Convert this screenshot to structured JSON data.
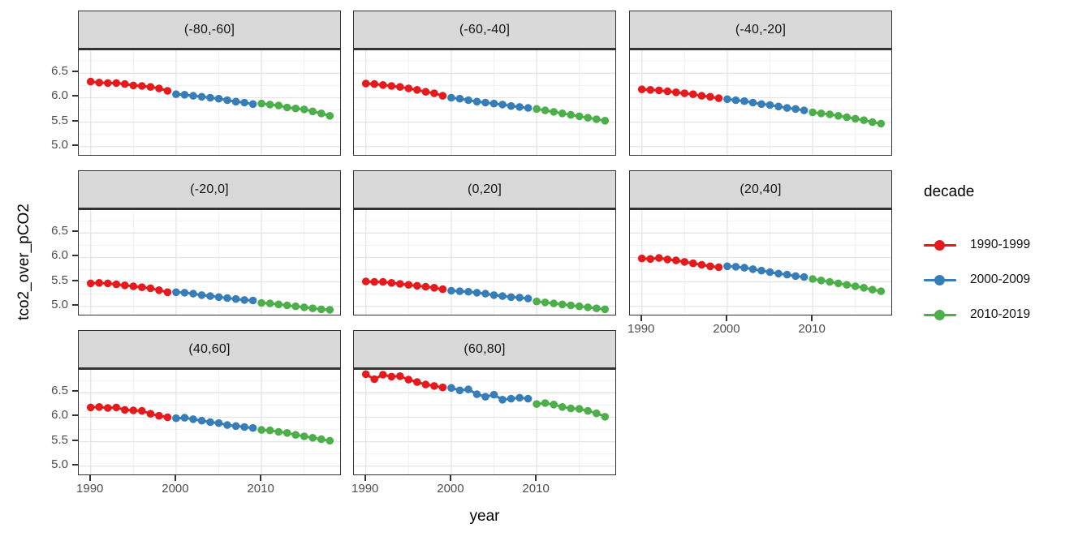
{
  "figure": {
    "y_axis_title": "tco2_over_pCO2",
    "x_axis_title": "year"
  },
  "legend": {
    "title": "decade",
    "position": "right",
    "entries": [
      {
        "label": "1990-1999",
        "color": "#E41A1C"
      },
      {
        "label": "2000-2009",
        "color": "#377EB8"
      },
      {
        "label": "2010-2019",
        "color": "#4DAF4A"
      }
    ]
  },
  "chart_data": {
    "type": "scatter",
    "title": "",
    "xlabel": "year",
    "ylabel": "tco2_over_pCO2",
    "facet_variable": "latitude band",
    "grid": true,
    "legend_position": "right",
    "x_domain": [
      1988.6,
      2019.4
    ],
    "y_domain": [
      4.78,
      6.97
    ],
    "x_ticks": [
      1990,
      2000,
      2010
    ],
    "x_tick_labels": [
      "1990",
      "2000",
      "2010"
    ],
    "x_minor_ticks": [
      1995,
      2005,
      2015
    ],
    "y_ticks": [
      6.5,
      6.0,
      5.5,
      5.0
    ],
    "y_tick_labels": [
      "6.5",
      "6.0",
      "5.5",
      "5.0"
    ],
    "y_minor_ticks": [
      6.75,
      6.25,
      5.75,
      5.25
    ],
    "series_colors": {
      "1990-1999": "#E41A1C",
      "2000-2009": "#377EB8",
      "2010-2019": "#4DAF4A"
    },
    "series_start_years": {
      "1990-1999": 1990,
      "2000-2009": 2000,
      "2010-2019": 2010
    },
    "panels": [
      {
        "label": "(-80,-60]",
        "row": 0,
        "col": 0,
        "series": {
          "1990-1999": [
            6.33,
            6.31,
            6.3,
            6.3,
            6.28,
            6.25,
            6.24,
            6.22,
            6.19,
            6.14
          ],
          "2000-2009": [
            6.07,
            6.06,
            6.04,
            6.02,
            6.0,
            5.98,
            5.95,
            5.92,
            5.9,
            5.87
          ],
          "2010-2019": [
            5.88,
            5.86,
            5.84,
            5.8,
            5.78,
            5.76,
            5.72,
            5.68,
            5.63
          ]
        }
      },
      {
        "label": "(-60,-40]",
        "row": 0,
        "col": 1,
        "series": {
          "1990-1999": [
            6.29,
            6.28,
            6.26,
            6.24,
            6.22,
            6.19,
            6.16,
            6.12,
            6.09,
            6.04
          ],
          "2000-2009": [
            6.0,
            5.98,
            5.95,
            5.92,
            5.9,
            5.88,
            5.86,
            5.83,
            5.81,
            5.79
          ],
          "2010-2019": [
            5.77,
            5.74,
            5.71,
            5.68,
            5.65,
            5.62,
            5.59,
            5.56,
            5.53
          ]
        }
      },
      {
        "label": "(-40,-20]",
        "row": 0,
        "col": 2,
        "series": {
          "1990-1999": [
            6.17,
            6.16,
            6.15,
            6.13,
            6.11,
            6.09,
            6.07,
            6.04,
            6.02,
            5.99
          ],
          "2000-2009": [
            5.97,
            5.95,
            5.93,
            5.9,
            5.87,
            5.85,
            5.82,
            5.79,
            5.77,
            5.74
          ],
          "2010-2019": [
            5.7,
            5.68,
            5.66,
            5.63,
            5.6,
            5.57,
            5.54,
            5.5,
            5.47
          ]
        }
      },
      {
        "label": "(-20,0]",
        "row": 1,
        "col": 0,
        "series": {
          "1990-1999": [
            5.47,
            5.48,
            5.47,
            5.45,
            5.43,
            5.41,
            5.39,
            5.37,
            5.33,
            5.29
          ],
          "2000-2009": [
            5.29,
            5.28,
            5.26,
            5.23,
            5.21,
            5.19,
            5.17,
            5.15,
            5.13,
            5.12
          ],
          "2010-2019": [
            5.07,
            5.06,
            5.04,
            5.02,
            5.0,
            4.98,
            4.96,
            4.94,
            4.93
          ]
        }
      },
      {
        "label": "(0,20]",
        "row": 1,
        "col": 1,
        "series": {
          "1990-1999": [
            5.51,
            5.5,
            5.5,
            5.48,
            5.46,
            5.44,
            5.42,
            5.4,
            5.38,
            5.35
          ],
          "2000-2009": [
            5.32,
            5.31,
            5.3,
            5.28,
            5.26,
            5.23,
            5.21,
            5.19,
            5.18,
            5.16
          ],
          "2010-2019": [
            5.1,
            5.08,
            5.06,
            5.04,
            5.02,
            5.0,
            4.98,
            4.96,
            4.94
          ]
        }
      },
      {
        "label": "(20,40]",
        "row": 1,
        "col": 2,
        "series": {
          "1990-1999": [
            5.98,
            5.97,
            5.99,
            5.96,
            5.94,
            5.91,
            5.88,
            5.85,
            5.82,
            5.8
          ],
          "2000-2009": [
            5.82,
            5.81,
            5.79,
            5.76,
            5.73,
            5.7,
            5.67,
            5.65,
            5.62,
            5.6
          ],
          "2010-2019": [
            5.56,
            5.53,
            5.5,
            5.47,
            5.44,
            5.41,
            5.38,
            5.34,
            5.31
          ]
        }
      },
      {
        "label": "(40,60]",
        "row": 2,
        "col": 0,
        "series": {
          "1990-1999": [
            6.2,
            6.21,
            6.19,
            6.2,
            6.15,
            6.14,
            6.13,
            6.07,
            6.03,
            6.0
          ],
          "2000-2009": [
            5.98,
            5.99,
            5.96,
            5.93,
            5.9,
            5.88,
            5.84,
            5.82,
            5.8,
            5.78
          ],
          "2010-2019": [
            5.74,
            5.73,
            5.7,
            5.68,
            5.64,
            5.61,
            5.58,
            5.55,
            5.52
          ]
        }
      },
      {
        "label": "(60,80]",
        "row": 2,
        "col": 1,
        "series": {
          "1990-1999": [
            6.88,
            6.78,
            6.87,
            6.83,
            6.84,
            6.77,
            6.72,
            6.67,
            6.64,
            6.61
          ],
          "2000-2009": [
            6.6,
            6.55,
            6.57,
            6.47,
            6.42,
            6.46,
            6.36,
            6.38,
            6.4,
            6.38
          ],
          "2010-2019": [
            6.27,
            6.29,
            6.26,
            6.21,
            6.18,
            6.17,
            6.13,
            6.08,
            6.01
          ]
        }
      }
    ]
  }
}
